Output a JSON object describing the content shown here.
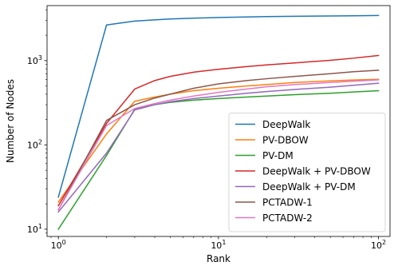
{
  "chart_data": {
    "type": "line",
    "title": "",
    "xlabel": "Rank",
    "ylabel": "Number of Nodes",
    "xscale": "log",
    "yscale": "log",
    "xlim": [
      0.85,
      118
    ],
    "ylim": [
      8.2,
      4500
    ],
    "x_ticks": [
      {
        "value": 1,
        "base": "10",
        "exp": "0"
      },
      {
        "value": 10,
        "base": "10",
        "exp": "1"
      },
      {
        "value": 100,
        "base": "10",
        "exp": "2"
      }
    ],
    "y_ticks": [
      {
        "value": 10,
        "base": "10",
        "exp": "1"
      },
      {
        "value": 100,
        "base": "10",
        "exp": "2"
      },
      {
        "value": 1000,
        "base": "10",
        "exp": "3"
      }
    ],
    "legend_position": "lower-right",
    "grid": false,
    "series": [
      {
        "name": "DeepWalk",
        "color": "#1f77b4",
        "points": [
          [
            1,
            24
          ],
          [
            2,
            2650
          ],
          [
            3,
            2950
          ],
          [
            4,
            3050
          ],
          [
            5,
            3120
          ],
          [
            7,
            3190
          ],
          [
            10,
            3250
          ],
          [
            15,
            3300
          ],
          [
            20,
            3330
          ],
          [
            30,
            3360
          ],
          [
            50,
            3390
          ],
          [
            70,
            3410
          ],
          [
            100,
            3430
          ]
        ]
      },
      {
        "name": "PV-DBOW",
        "color": "#ff7f0e",
        "points": [
          [
            1,
            21
          ],
          [
            2,
            135
          ],
          [
            3,
            330
          ],
          [
            4,
            370
          ],
          [
            5,
            400
          ],
          [
            7,
            440
          ],
          [
            10,
            470
          ],
          [
            15,
            500
          ],
          [
            20,
            520
          ],
          [
            30,
            550
          ],
          [
            50,
            575
          ],
          [
            70,
            590
          ],
          [
            100,
            600
          ]
        ]
      },
      {
        "name": "PV-DM",
        "color": "#2ca02c",
        "points": [
          [
            1,
            10
          ],
          [
            2,
            75
          ],
          [
            3,
            265
          ],
          [
            4,
            300
          ],
          [
            5,
            320
          ],
          [
            7,
            340
          ],
          [
            10,
            355
          ],
          [
            15,
            370
          ],
          [
            20,
            380
          ],
          [
            30,
            395
          ],
          [
            50,
            410
          ],
          [
            70,
            425
          ],
          [
            100,
            440
          ]
        ]
      },
      {
        "name": "DeepWalk + PV-DBOW",
        "color": "#d62728",
        "points": [
          [
            1,
            19
          ],
          [
            2,
            180
          ],
          [
            3,
            460
          ],
          [
            4,
            580
          ],
          [
            5,
            650
          ],
          [
            7,
            730
          ],
          [
            10,
            790
          ],
          [
            15,
            850
          ],
          [
            20,
            890
          ],
          [
            30,
            940
          ],
          [
            50,
            1010
          ],
          [
            70,
            1070
          ],
          [
            100,
            1150
          ]
        ]
      },
      {
        "name": "DeepWalk + PV-DM",
        "color": "#9467bd",
        "points": [
          [
            1,
            16
          ],
          [
            2,
            80
          ],
          [
            3,
            260
          ],
          [
            4,
            300
          ],
          [
            5,
            325
          ],
          [
            7,
            355
          ],
          [
            10,
            380
          ],
          [
            15,
            410
          ],
          [
            20,
            430
          ],
          [
            30,
            455
          ],
          [
            50,
            485
          ],
          [
            70,
            510
          ],
          [
            100,
            540
          ]
        ]
      },
      {
        "name": "PCTADW-1",
        "color": "#8c564b",
        "points": [
          [
            1,
            17
          ],
          [
            2,
            195
          ],
          [
            3,
            300
          ],
          [
            4,
            360
          ],
          [
            5,
            400
          ],
          [
            7,
            470
          ],
          [
            10,
            530
          ],
          [
            15,
            580
          ],
          [
            20,
            610
          ],
          [
            30,
            650
          ],
          [
            50,
            700
          ],
          [
            70,
            740
          ],
          [
            100,
            770
          ]
        ]
      },
      {
        "name": "PCTADW-2",
        "color": "#e377c2",
        "points": [
          [
            1,
            17
          ],
          [
            2,
            170
          ],
          [
            3,
            270
          ],
          [
            4,
            310
          ],
          [
            5,
            340
          ],
          [
            7,
            380
          ],
          [
            10,
            420
          ],
          [
            15,
            460
          ],
          [
            20,
            490
          ],
          [
            30,
            520
          ],
          [
            50,
            550
          ],
          [
            70,
            570
          ],
          [
            100,
            590
          ]
        ]
      }
    ]
  }
}
